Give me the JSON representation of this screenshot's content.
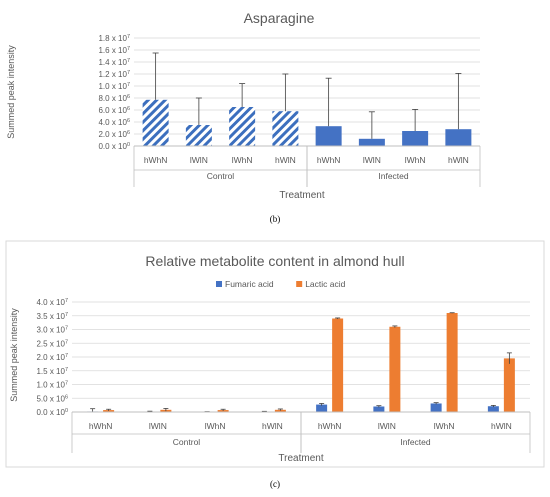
{
  "chart_data": [
    {
      "type": "bar",
      "title": "Asparagine",
      "ylabel": "Summed peak intensity",
      "xlabel": "Treatment",
      "ylim": [
        0,
        18000000
      ],
      "yticks": [
        0,
        2000000,
        4000000,
        6000000,
        8000000,
        10000000,
        12000000,
        14000000,
        16000000,
        18000000
      ],
      "ytick_labels": [
        {
          "m": "0.0",
          "e": "0"
        },
        {
          "m": "2.0",
          "e": "6"
        },
        {
          "m": "4.0",
          "e": "6"
        },
        {
          "m": "6.0",
          "e": "6"
        },
        {
          "m": "8.0",
          "e": "6"
        },
        {
          "m": "1.0",
          "e": "7"
        },
        {
          "m": "1.2",
          "e": "7"
        },
        {
          "m": "1.4",
          "e": "7"
        },
        {
          "m": "1.6",
          "e": "7"
        },
        {
          "m": "1.8",
          "e": "7"
        }
      ],
      "groups": [
        {
          "name": "Control",
          "categories": [
            "hWhN",
            "lWlN",
            "lWhN",
            "hWlN"
          ]
        },
        {
          "name": "Infected",
          "categories": [
            "hWhN",
            "lWlN",
            "lWhN",
            "hWlN"
          ]
        }
      ],
      "values": [
        7700000,
        3500000,
        6500000,
        5800000,
        3300000,
        1200000,
        2500000,
        2800000
      ],
      "errors": [
        7800000,
        4500000,
        3900000,
        6200000,
        8000000,
        4500000,
        3600000,
        9300000
      ],
      "bar_styles": [
        "hatched",
        "hatched",
        "hatched",
        "hatched",
        "solid",
        "solid",
        "solid",
        "solid"
      ],
      "grid": true,
      "caption": "(b)"
    },
    {
      "type": "bar",
      "title": "Relative  metabolite content in almond hull",
      "ylabel": "Summed peak intensity",
      "xlabel": "Treatment",
      "ylim": [
        0,
        40000000
      ],
      "yticks": [
        0,
        5000000,
        10000000,
        15000000,
        20000000,
        25000000,
        30000000,
        35000000,
        40000000
      ],
      "ytick_labels": [
        {
          "m": "0.0",
          "e": "0"
        },
        {
          "m": "5.0",
          "e": "6"
        },
        {
          "m": "1.0",
          "e": "7"
        },
        {
          "m": "1.5",
          "e": "7"
        },
        {
          "m": "2.0",
          "e": "7"
        },
        {
          "m": "2.5",
          "e": "7"
        },
        {
          "m": "3.0",
          "e": "7"
        },
        {
          "m": "3.5",
          "e": "7"
        },
        {
          "m": "4.0",
          "e": "7"
        }
      ],
      "groups": [
        {
          "name": "Control",
          "categories": [
            "hWhN",
            "lWlN",
            "lWhN",
            "hWlN"
          ]
        },
        {
          "name": "Infected",
          "categories": [
            "hWhN",
            "lWlN",
            "lWhN",
            "hWlN"
          ]
        }
      ],
      "series": [
        {
          "name": "Fumaric acid",
          "color": "#4472c4",
          "values": [
            200000,
            100000,
            50000,
            100000,
            2700000,
            2000000,
            3100000,
            2100000
          ],
          "errors": [
            1000000,
            200000,
            100000,
            150000,
            400000,
            300000,
            300000,
            300000
          ]
        },
        {
          "name": "Lactic acid",
          "color": "#ed7d31",
          "values": [
            700000,
            800000,
            700000,
            800000,
            34000000,
            31000000,
            36000000,
            19500000
          ],
          "errors": [
            300000,
            500000,
            300000,
            300000,
            200000,
            300000,
            100000,
            2000000
          ]
        }
      ],
      "legend": "top",
      "grid": true,
      "caption": "(c)"
    }
  ]
}
